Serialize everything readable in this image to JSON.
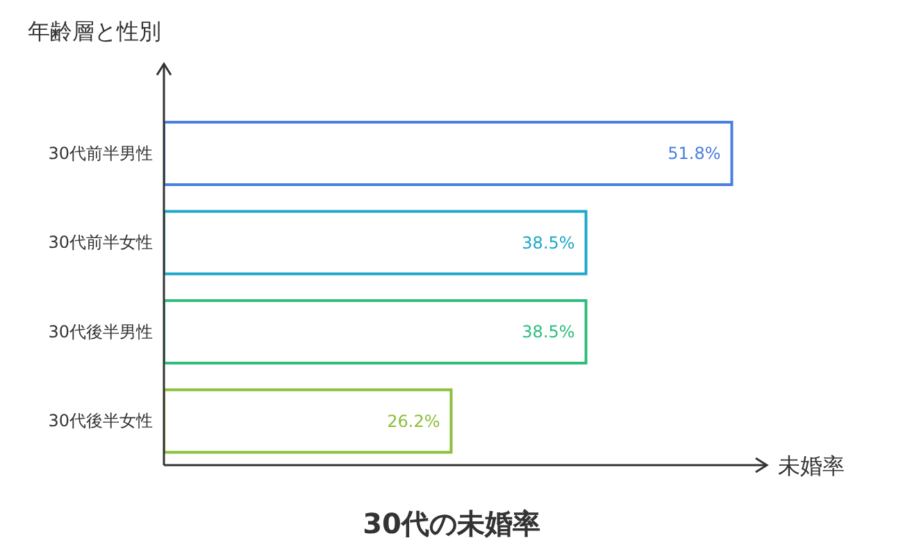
{
  "chart_data": {
    "type": "bar",
    "orientation": "horizontal",
    "title": "30代の未婚率",
    "xlabel": "未婚率",
    "ylabel": "年齢層と性別",
    "categories": [
      "30代前半男性",
      "30代前半女性",
      "30代後半男性",
      "30代後半女性"
    ],
    "values": [
      51.8,
      38.5,
      38.5,
      26.2
    ],
    "colors": [
      "#4a7fe0",
      "#1fa8c9",
      "#2fbd7c",
      "#8cbf3a"
    ],
    "value_labels": [
      "51.8%",
      "38.5%",
      "38.5%",
      "26.2%"
    ],
    "xlim": [
      0,
      55
    ],
    "tick_labels": "y",
    "grid": false,
    "legend": false
  }
}
